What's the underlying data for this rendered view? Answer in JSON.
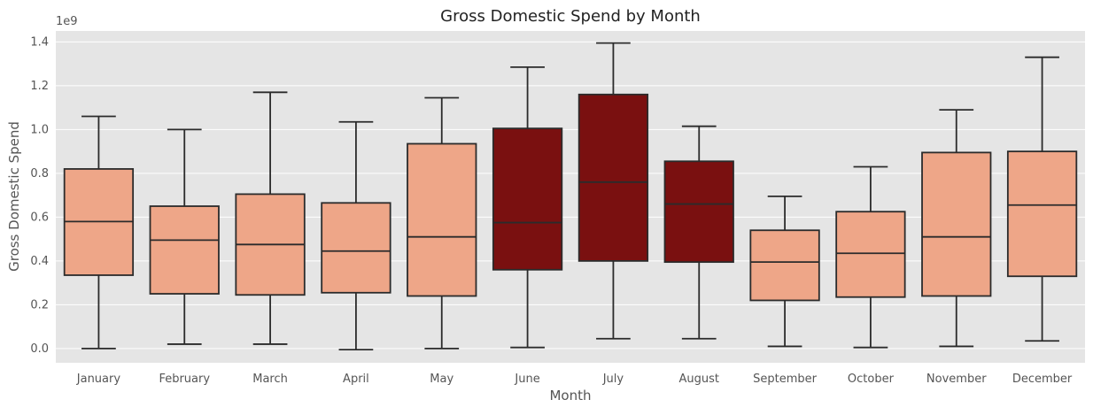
{
  "chart_data": {
    "type": "box",
    "title": "Gross Domestic Spend by Month",
    "xlabel": "Month",
    "ylabel": "Gross Domestic Spend",
    "y_offset_label": "1e9",
    "ylim": [
      -0.065,
      1.45
    ],
    "yticks": [
      0.0,
      0.2,
      0.4,
      0.6,
      0.8,
      1.0,
      1.2,
      1.4
    ],
    "ytick_labels": [
      "0.0",
      "0.2",
      "0.4",
      "0.6",
      "0.8",
      "1.0",
      "1.2",
      "1.4"
    ],
    "grid": true,
    "colors": {
      "light_box": "#eea688",
      "dark_box": "#7a1010",
      "stroke": "#2b2b2b",
      "background": "#e5e5e5",
      "grid": "#ffffff"
    },
    "categories": [
      "January",
      "February",
      "March",
      "April",
      "May",
      "June",
      "July",
      "August",
      "September",
      "October",
      "November",
      "December"
    ],
    "boxes": [
      {
        "min": 0.0,
        "q1": 0.335,
        "median": 0.58,
        "q3": 0.82,
        "max": 1.06,
        "highlight": false
      },
      {
        "min": 0.02,
        "q1": 0.25,
        "median": 0.495,
        "q3": 0.65,
        "max": 1.0,
        "highlight": false
      },
      {
        "min": 0.02,
        "q1": 0.245,
        "median": 0.475,
        "q3": 0.705,
        "max": 1.17,
        "highlight": false
      },
      {
        "min": -0.005,
        "q1": 0.255,
        "median": 0.445,
        "q3": 0.665,
        "max": 1.035,
        "highlight": false
      },
      {
        "min": 0.0,
        "q1": 0.24,
        "median": 0.51,
        "q3": 0.935,
        "max": 1.145,
        "highlight": false
      },
      {
        "min": 0.005,
        "q1": 0.36,
        "median": 0.575,
        "q3": 1.005,
        "max": 1.285,
        "highlight": true
      },
      {
        "min": 0.045,
        "q1": 0.4,
        "median": 0.76,
        "q3": 1.16,
        "max": 1.395,
        "highlight": true
      },
      {
        "min": 0.045,
        "q1": 0.395,
        "median": 0.66,
        "q3": 0.855,
        "max": 1.015,
        "highlight": true
      },
      {
        "min": 0.01,
        "q1": 0.22,
        "median": 0.395,
        "q3": 0.54,
        "max": 0.695,
        "highlight": false
      },
      {
        "min": 0.005,
        "q1": 0.235,
        "median": 0.435,
        "q3": 0.625,
        "max": 0.83,
        "highlight": false
      },
      {
        "min": 0.01,
        "q1": 0.24,
        "median": 0.51,
        "q3": 0.895,
        "max": 1.09,
        "highlight": false
      },
      {
        "min": 0.035,
        "q1": 0.33,
        "median": 0.655,
        "q3": 0.9,
        "max": 1.33,
        "highlight": false
      }
    ]
  }
}
